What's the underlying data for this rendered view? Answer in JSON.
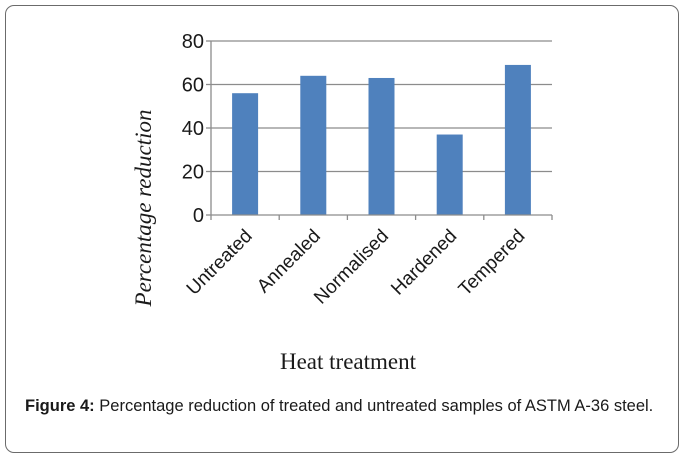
{
  "chart_data": {
    "type": "bar",
    "title": "",
    "xlabel": "Heat treatment",
    "ylabel": "Percentage reduction",
    "categories": [
      "Untreated",
      "Annealed",
      "Normalised",
      "Hardened",
      "Tempered"
    ],
    "values": [
      56,
      64,
      63,
      37,
      69
    ],
    "ylim": [
      0,
      80
    ],
    "yticks": [
      0,
      20,
      40,
      60,
      80
    ],
    "grid": true,
    "bar_color": "#4f81bd"
  },
  "caption": {
    "label": "Figure 4:",
    "text": " Percentage reduction of treated and untreated samples of ASTM A-36 steel."
  }
}
